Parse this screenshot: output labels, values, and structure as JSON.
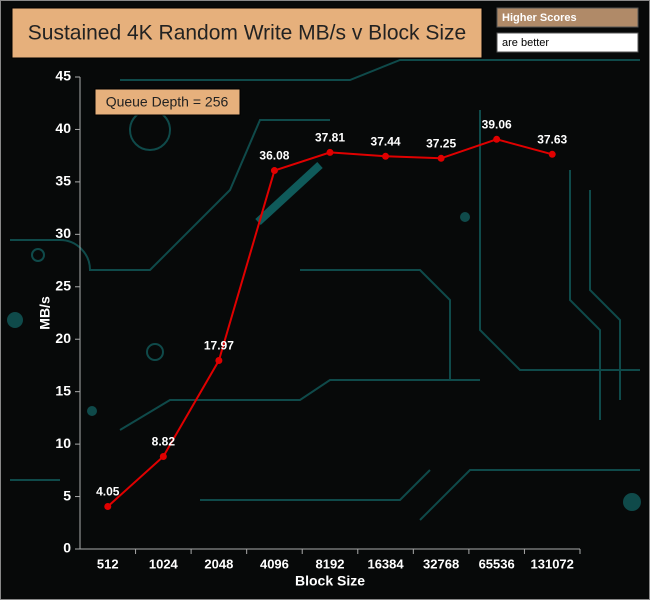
{
  "chart_data": {
    "type": "line",
    "title": "Sustained 4K Random Write MB/s v Block Size",
    "badge": [
      "Higher Scores",
      "are better"
    ],
    "annotation": "Queue Depth = 256",
    "xlabel": "Block Size",
    "ylabel": "MB/s",
    "categories": [
      "512",
      "1024",
      "2048",
      "4096",
      "8192",
      "16384",
      "32768",
      "65536",
      "131072"
    ],
    "series": [
      {
        "name": "Sustained 4K Random Write",
        "color": "#e00000",
        "values": [
          4.05,
          8.82,
          17.97,
          36.08,
          37.81,
          37.44,
          37.25,
          39.06,
          37.63
        ]
      }
    ],
    "ylim": [
      0,
      45
    ],
    "yticks": [
      0,
      5,
      10,
      15,
      20,
      25,
      30,
      35,
      40,
      45
    ]
  }
}
